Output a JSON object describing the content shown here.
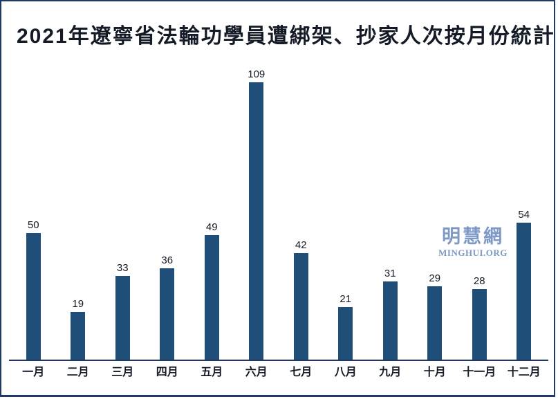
{
  "window": {
    "background_color": "#ffffff",
    "frame_color": "#1f3864"
  },
  "title": "2021年遼寧省法輪功學員遭綁架、抄家人次按月份統計",
  "watermark": {
    "cjk": "明慧網",
    "latin": "MINGHUI.ORG",
    "color": "#7e99c5"
  },
  "chart_data": {
    "type": "bar",
    "title": "2021年遼寧省法輪功學員遭綁架、抄家人次按月份統計",
    "categories": [
      "一月",
      "二月",
      "三月",
      "四月",
      "五月",
      "六月",
      "七月",
      "八月",
      "九月",
      "十月",
      "十一月",
      "十二月"
    ],
    "values": [
      50,
      19,
      33,
      36,
      49,
      109,
      42,
      21,
      31,
      29,
      28,
      54
    ],
    "xlabel": "",
    "ylabel": "",
    "ylim": [
      0,
      115
    ],
    "grid": false,
    "legend": false,
    "data_labels": true,
    "bar_color": "#1f4e79",
    "axis_color": "#1f3864",
    "text_color": "#141a26"
  }
}
